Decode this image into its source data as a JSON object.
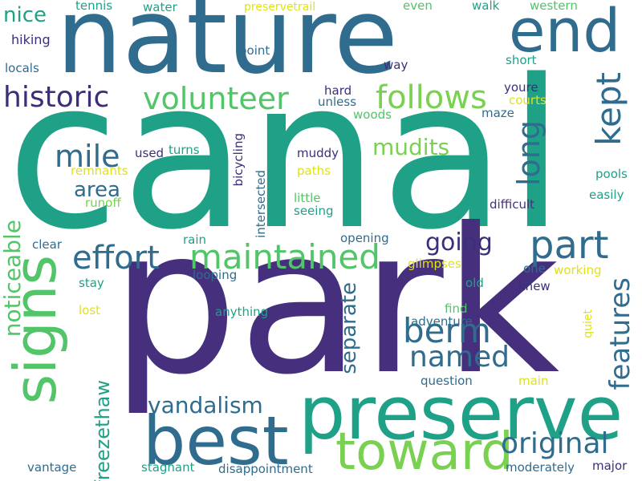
{
  "palette": {
    "dark_purple": "#46307e",
    "blue": "#2f6c8e",
    "teal": "#1fa187",
    "green": "#52c569",
    "light_green": "#a2da37",
    "yellow": "#dfe318"
  },
  "words": [
    "canal",
    "park",
    "nature",
    "preserve",
    "best",
    "end",
    "toward",
    "signs",
    "part",
    "historic",
    "volunteer",
    "follows",
    "kept",
    "maintained",
    "effort",
    "long",
    "mile",
    "berm",
    "mudits",
    "original",
    "named",
    "going",
    "features",
    "noticeable",
    "area",
    "vandalism",
    "separate",
    "freezethaw",
    "nice",
    "hiking",
    "locals",
    "tennis",
    "water",
    "preservetrail",
    "even",
    "walk",
    "western",
    "point",
    "way",
    "short",
    "youre",
    "hard",
    "unless",
    "courts",
    "woods",
    "maze",
    "used",
    "turns",
    "muddy",
    "remnants",
    "bicycling",
    "paths",
    "pools",
    "runoff",
    "easily",
    "little",
    "seeing",
    "intersected",
    "difficult",
    "clear",
    "rain",
    "opening",
    "glimpses",
    "stay",
    "looping",
    "one",
    "working",
    "old",
    "knew",
    "lost",
    "anything",
    "find",
    "adventure",
    "quiet",
    "question",
    "main",
    "vantage",
    "stagnant",
    "disappointment",
    "moderately",
    "major"
  ]
}
